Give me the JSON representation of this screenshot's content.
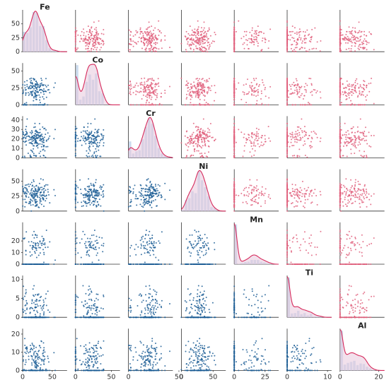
{
  "chart_data": {
    "type": "scatter",
    "title": "",
    "variables": [
      {
        "name": "Fe",
        "lo": 0,
        "hi": 75,
        "xticks": [
          0,
          50
        ],
        "yticks": [
          0,
          25,
          50
        ]
      },
      {
        "name": "Co",
        "lo": 0,
        "hi": 62,
        "xticks": [
          0,
          50
        ],
        "yticks": [
          0,
          25,
          50
        ]
      },
      {
        "name": "Cr",
        "lo": 0,
        "hi": 44,
        "xticks": [
          0,
          50
        ],
        "yticks": [
          0,
          10,
          20,
          30,
          40
        ]
      },
      {
        "name": "Ni",
        "lo": 0,
        "hi": 70,
        "xticks": [
          0,
          50
        ],
        "yticks": [
          0,
          25,
          50
        ]
      },
      {
        "name": "Mn",
        "lo": 0,
        "hi": 36,
        "xticks": [
          0,
          25
        ],
        "yticks": [
          0,
          10,
          20
        ]
      },
      {
        "name": "Ti",
        "lo": 0,
        "hi": 11,
        "xticks": [
          0,
          10
        ],
        "yticks": [
          0,
          5,
          10
        ]
      },
      {
        "name": "Al",
        "lo": 0,
        "hi": 23,
        "xticks": [
          0,
          20
        ],
        "yticks": [
          0,
          10,
          20
        ]
      }
    ],
    "diagonal": "histogram with kde",
    "lower_triangle": "scatter",
    "upper_triangle": "scatter",
    "grid": false,
    "colors": {
      "lower_scatter": "#1f5f96",
      "upper_scatter": "#e0627e",
      "kde_line": "#d62a5c",
      "kde_fill": "#e8c8dc",
      "hist_bar": "#b9cfe8"
    }
  }
}
